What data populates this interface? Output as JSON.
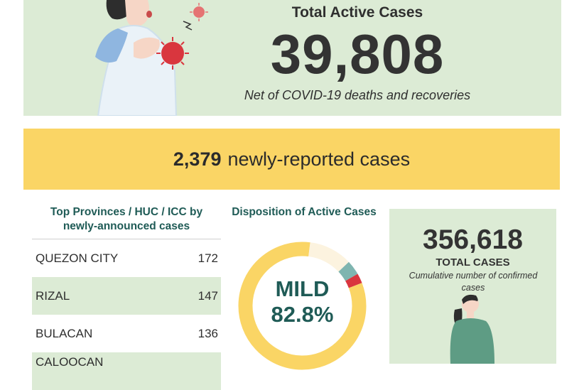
{
  "hero": {
    "title": "Total Active Cases",
    "number": "39,808",
    "subtitle": "Net of COVID-19 deaths and recoveries",
    "illustration_icon": "coughing-person-illustration"
  },
  "banner": {
    "count": "2,379",
    "text": "newly-reported cases"
  },
  "provinces": {
    "title": "Top Provinces / HUC / ICC by newly-announced cases",
    "rows": [
      {
        "name": "QUEZON CITY",
        "value": "172"
      },
      {
        "name": "RIZAL",
        "value": "147"
      },
      {
        "name": "BULACAN",
        "value": "136"
      },
      {
        "name": "CALOOCAN",
        "value": ""
      }
    ]
  },
  "disposition": {
    "title": "Disposition of Active Cases",
    "center_category": "MILD",
    "center_percent": "82.8%",
    "segments": [
      {
        "category": "MILD",
        "percent": 82.8,
        "color": "#fad565"
      },
      {
        "category": "other-1",
        "percent": 11.0,
        "color": "#fcf3df"
      },
      {
        "category": "other-2",
        "percent": 3.7,
        "color": "#7fb5b0"
      },
      {
        "category": "other-3",
        "percent": 2.5,
        "color": "#d9363e"
      }
    ]
  },
  "total": {
    "number": "356,618",
    "label": "TOTAL CASES",
    "subtitle": "Cumulative number of confirmed cases",
    "illustration_icon": "person-illustration"
  },
  "colors": {
    "green_bg": "#dcebd5",
    "yellow": "#fad565",
    "teal_text": "#1f5b56"
  }
}
